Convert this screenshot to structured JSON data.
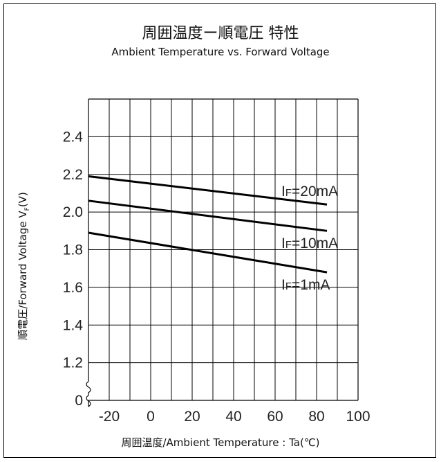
{
  "chart_data": {
    "type": "line",
    "title": "周囲温度ー順電圧 特性",
    "subtitle": "Ambient Temperature vs. Forward Voltage",
    "xlabel": "周囲温度/Ambient Temperature : Ta(℃)",
    "ylabel": "順電圧/Forward Voltage V",
    "ylabel_subscript": "F",
    "ylabel_suffix": "(V)",
    "x_ticks": [
      "-20",
      "0",
      "20",
      "40",
      "60",
      "80",
      "100"
    ],
    "y_ticks": [
      "2.4",
      "2.2",
      "2.0",
      "1.8",
      "1.6",
      "1.4",
      "1.2",
      "0"
    ],
    "xlim": [
      -30,
      100
    ],
    "ylim": [
      1.0,
      2.6
    ],
    "grid": true,
    "axis_break": "y",
    "series": [
      {
        "name": "IF=20mA",
        "label_main": "I",
        "label_sub": "F",
        "label_rest": "=20mA",
        "x": [
          -30,
          85
        ],
        "y": [
          2.19,
          2.04
        ],
        "color": "#000000"
      },
      {
        "name": "IF=10mA",
        "label_main": "I",
        "label_sub": "F",
        "label_rest": "=10mA",
        "x": [
          -30,
          85
        ],
        "y": [
          2.06,
          1.9
        ],
        "color": "#000000"
      },
      {
        "name": "IF=1mA",
        "label_main": "I",
        "label_sub": "F",
        "label_rest": "=1mA",
        "x": [
          -30,
          85
        ],
        "y": [
          1.89,
          1.68
        ],
        "color": "#000000"
      }
    ]
  }
}
